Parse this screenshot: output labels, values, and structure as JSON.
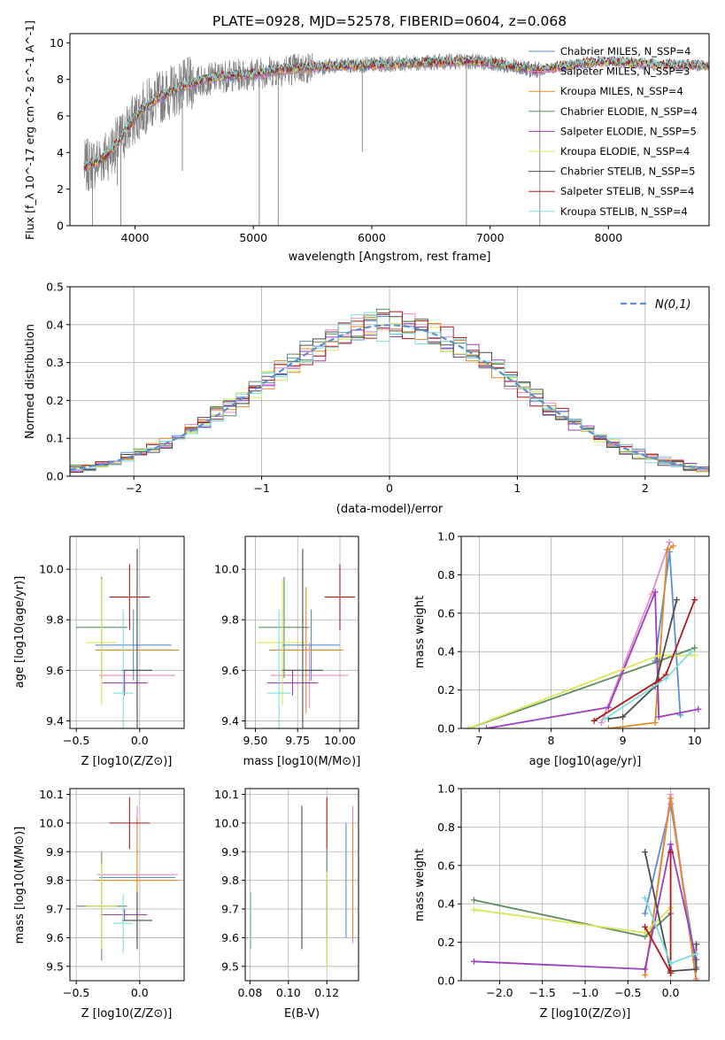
{
  "suptitle": "PLATE=0928, MJD=52578, FIBERID=0604, z=0.068",
  "legend_labels": [
    "Chabrier MILES, N_SSP=4",
    "Salpeter MILES, N_SSP=3",
    "Kroupa MILES, N_SSP=4",
    "Chabrier ELODIE, N_SSP=4",
    "Salpeter ELODIE, N_SSP=5",
    "Kroupa ELODIE, N_SSP=4",
    "Chabrier STELIB, N_SSP=5",
    "Salpeter STELIB, N_SSP=4",
    "Kroupa STELIB, N_SSP=4"
  ],
  "colors": {
    "data": "#808080",
    "models": [
      "#5a8fd0",
      "#e58ac7",
      "#e08a2a",
      "#5f8c5f",
      "#9b3fbf",
      "#d9e85a",
      "#4d4d4d",
      "#b01818",
      "#7fdde0"
    ],
    "dashed": "#5b8fd0"
  },
  "chart_data": [
    {
      "id": "spectrum",
      "type": "line",
      "xlabel": "wavelength [Angstrom, rest frame]",
      "ylabel": "Flux [f_λ 10^-17 erg cm^-2 s^-1 A^-1]",
      "xlim": [
        3450,
        8850
      ],
      "ylim": [
        0,
        10.5
      ],
      "xticks": [
        4000,
        5000,
        6000,
        7000,
        8000
      ],
      "yticks": [
        0,
        2,
        4,
        6,
        8,
        10
      ],
      "continuum": {
        "x": [
          3570,
          3650,
          3750,
          3850,
          3950,
          4050,
          4200,
          4400,
          4600,
          4800,
          5000,
          5200,
          5400,
          5600,
          5800,
          6000,
          6200,
          6400,
          6600,
          6800,
          7000,
          7200,
          7400,
          7600,
          7800,
          8000,
          8200,
          8400,
          8600,
          8800
        ],
        "y": [
          3.2,
          3.4,
          3.8,
          4.5,
          5.4,
          6.3,
          7.0,
          7.6,
          8.0,
          8.2,
          8.3,
          8.5,
          8.6,
          8.7,
          8.75,
          8.8,
          8.85,
          8.9,
          8.95,
          9.0,
          8.9,
          8.7,
          8.5,
          8.7,
          8.9,
          9.0,
          8.9,
          8.8,
          8.8,
          8.75
        ]
      },
      "data_x_range": [
        3570,
        7420
      ],
      "model_x_range": [
        3570,
        8850
      ],
      "spikes": [
        {
          "x": 3640,
          "y": 0
        },
        {
          "x": 3850,
          "y": 2.2
        },
        {
          "x": 3880,
          "y": 0
        },
        {
          "x": 4400,
          "y": 3.0
        },
        {
          "x": 5050,
          "y": 0
        },
        {
          "x": 5210,
          "y": 0
        },
        {
          "x": 5920,
          "y": 4.0
        },
        {
          "x": 6800,
          "y": 0
        },
        {
          "x": 7420,
          "y": 0
        }
      ]
    },
    {
      "id": "residuals",
      "type": "step",
      "xlabel": "(data-model)/error",
      "ylabel": "Normed distribution",
      "xlim": [
        -2.5,
        2.5
      ],
      "ylim": [
        0,
        0.5
      ],
      "xticks": [
        -2,
        -1,
        0,
        1,
        2
      ],
      "yticks": [
        0.0,
        0.1,
        0.2,
        0.3,
        0.4,
        0.5
      ],
      "bin_width": 0.1,
      "legend": "N(0,1)"
    },
    {
      "id": "age-vs-Z",
      "type": "errorbar",
      "xlabel": "Z [log10(Z/Z⊙)]",
      "ylabel": "age  [log10(age/yr)]",
      "xlim": [
        -0.55,
        0.35
      ],
      "ylim": [
        9.37,
        10.13
      ],
      "xticks": [
        -0.5,
        0.0
      ],
      "yticks": [
        9.4,
        9.6,
        9.8,
        10.0
      ],
      "points": [
        {
          "c": 0,
          "x": -0.05,
          "y": 9.7,
          "xe": 0.3,
          "ye": 0.14
        },
        {
          "c": 1,
          "x": -0.02,
          "y": 9.58,
          "xe": 0.3,
          "ye": 0.1
        },
        {
          "c": 2,
          "x": -0.02,
          "y": 9.68,
          "xe": 0.33,
          "ye": 0.25
        },
        {
          "c": 3,
          "x": -0.3,
          "y": 9.77,
          "xe": 0.2,
          "ye": 0.2
        },
        {
          "c": 4,
          "x": -0.12,
          "y": 9.55,
          "xe": 0.18,
          "ye": 0.05
        },
        {
          "c": 5,
          "x": -0.3,
          "y": 9.71,
          "xe": 0.12,
          "ye": 0.25
        },
        {
          "c": 6,
          "x": -0.02,
          "y": 9.6,
          "xe": 0.12,
          "ye": 0.48
        },
        {
          "c": 7,
          "x": -0.08,
          "y": 9.89,
          "xe": 0.16,
          "ye": 0.13
        },
        {
          "c": 8,
          "x": -0.13,
          "y": 9.51,
          "xe": 0.08,
          "ye": 0.33
        }
      ]
    },
    {
      "id": "age-vs-mass",
      "type": "errorbar",
      "xlabel": "mass [log10(M/M⊙)]",
      "ylabel": "",
      "xlim": [
        9.44,
        10.11
      ],
      "ylim": [
        9.37,
        10.13
      ],
      "xticks": [
        9.5,
        9.75,
        10.0
      ],
      "yticks": [
        9.4,
        9.6,
        9.8,
        10.0
      ],
      "points": [
        {
          "c": 0,
          "x": 9.83,
          "y": 9.7,
          "xe": 0.17,
          "ye": 0.14
        },
        {
          "c": 1,
          "x": 9.82,
          "y": 9.58,
          "xe": 0.23,
          "ye": 0.13
        },
        {
          "c": 2,
          "x": 9.8,
          "y": 9.68,
          "xe": 0.22,
          "ye": 0.25
        },
        {
          "c": 3,
          "x": 9.67,
          "y": 9.77,
          "xe": 0.15,
          "ye": 0.2
        },
        {
          "c": 4,
          "x": 9.72,
          "y": 9.55,
          "xe": 0.15,
          "ye": 0.05
        },
        {
          "c": 5,
          "x": 9.66,
          "y": 9.71,
          "xe": 0.15,
          "ye": 0.25
        },
        {
          "c": 6,
          "x": 9.78,
          "y": 9.6,
          "xe": 0.12,
          "ye": 0.48
        },
        {
          "c": 7,
          "x": 10.0,
          "y": 9.89,
          "xe": 0.09,
          "ye": 0.13
        },
        {
          "c": 8,
          "x": 9.64,
          "y": 9.51,
          "xe": 0.07,
          "ye": 0.33
        }
      ]
    },
    {
      "id": "weight-vs-age",
      "type": "line",
      "xlabel": "age  [log10(age/yr)]",
      "ylabel": "mass weight",
      "xlim": [
        6.75,
        10.2
      ],
      "ylim": [
        0,
        1.0
      ],
      "xticks": [
        7,
        8,
        9,
        10
      ],
      "yticks": [
        0.0,
        0.2,
        0.4,
        0.6,
        0.8,
        1.0
      ],
      "series": [
        {
          "c": 0,
          "x": [
            9.45,
            9.65,
            9.8
          ],
          "y": [
            0.35,
            0.92,
            0.07
          ]
        },
        {
          "c": 1,
          "x": [
            8.7,
            9.4,
            9.65
          ],
          "y": [
            0.03,
            0.7,
            0.97
          ]
        },
        {
          "c": 2,
          "x": [
            8.8,
            9.45,
            9.62,
            9.7
          ],
          "y": [
            0.0,
            0.03,
            0.93,
            0.95
          ]
        },
        {
          "c": 3,
          "x": [
            6.85,
            9.5,
            10.0
          ],
          "y": [
            0.0,
            0.35,
            0.42
          ]
        },
        {
          "c": 4,
          "x": [
            7.1,
            8.8,
            9.45,
            9.5,
            10.05
          ],
          "y": [
            0.0,
            0.11,
            0.71,
            0.06,
            0.1
          ]
        },
        {
          "c": 5,
          "x": [
            6.85,
            9.5,
            10.0
          ],
          "y": [
            0.0,
            0.38,
            0.38
          ]
        },
        {
          "c": 6,
          "x": [
            8.8,
            9.0,
            9.45,
            9.75
          ],
          "y": [
            0.05,
            0.06,
            0.22,
            0.67
          ]
        },
        {
          "c": 7,
          "x": [
            8.6,
            9.5,
            9.6,
            10.0
          ],
          "y": [
            0.04,
            0.25,
            0.28,
            0.67
          ]
        },
        {
          "c": 8,
          "x": [
            8.75,
            9.6,
            9.95
          ],
          "y": [
            0.05,
            0.26,
            0.4
          ]
        }
      ]
    },
    {
      "id": "mass-vs-Z",
      "type": "errorbar",
      "xlabel": "Z [log10(Z/Z⊙)]",
      "ylabel": "mass [log10(M/M⊙)]",
      "xlim": [
        -0.55,
        0.35
      ],
      "ylim": [
        9.45,
        10.12
      ],
      "xticks": [
        -0.5,
        0.0
      ],
      "yticks": [
        9.5,
        9.6,
        9.7,
        9.8,
        9.9,
        10.0,
        10.1
      ],
      "points": [
        {
          "c": 0,
          "x": -0.02,
          "y": 9.81,
          "xe": 0.3,
          "ye": 0.02
        },
        {
          "c": 1,
          "x": -0.02,
          "y": 9.82,
          "xe": 0.32,
          "ye": 0.24
        },
        {
          "c": 2,
          "x": -0.02,
          "y": 9.8,
          "xe": 0.33,
          "ye": 0.22
        },
        {
          "c": 3,
          "x": -0.3,
          "y": 9.71,
          "xe": 0.2,
          "ye": 0.19
        },
        {
          "c": 4,
          "x": -0.12,
          "y": 9.68,
          "xe": 0.18,
          "ye": 0.02
        },
        {
          "c": 5,
          "x": -0.3,
          "y": 9.71,
          "xe": 0.12,
          "ye": 0.15
        },
        {
          "c": 6,
          "x": -0.02,
          "y": 9.66,
          "xe": 0.12,
          "ye": 0.1
        },
        {
          "c": 7,
          "x": -0.08,
          "y": 10.0,
          "xe": 0.16,
          "ye": 0.09
        },
        {
          "c": 8,
          "x": -0.13,
          "y": 9.65,
          "xe": 0.08,
          "ye": 0.1
        }
      ]
    },
    {
      "id": "mass-vs-EBV",
      "type": "errorbar",
      "xlabel": "E(B-V)",
      "ylabel": "",
      "xlim": [
        0.0775,
        0.1365
      ],
      "ylim": [
        9.45,
        10.12
      ],
      "xticks": [
        0.08,
        0.1,
        0.12
      ],
      "yticks": [
        9.5,
        9.6,
        9.7,
        9.8,
        9.9,
        10.0,
        10.1
      ],
      "points": [
        {
          "c": 0,
          "x": 0.13,
          "y": 9.8,
          "xe": 0,
          "ye": 0.2
        },
        {
          "c": 1,
          "x": 0.1335,
          "y": 9.82,
          "xe": 0,
          "ye": 0.24
        },
        {
          "c": 2,
          "x": 0.1335,
          "y": 9.8,
          "xe": 0,
          "ye": 0.2
        },
        {
          "c": 3,
          "x": 0.12,
          "y": 9.71,
          "xe": 0,
          "ye": 0.2
        },
        {
          "c": 4,
          "x": 0.12,
          "y": 9.7,
          "xe": 0,
          "ye": 0.1
        },
        {
          "c": 5,
          "x": 0.12,
          "y": 9.66,
          "xe": 0,
          "ye": 0.17
        },
        {
          "c": 6,
          "x": 0.107,
          "y": 9.81,
          "xe": 0,
          "ye": 0.25
        },
        {
          "c": 7,
          "x": 0.12,
          "y": 10.0,
          "xe": 0,
          "ye": 0.09
        },
        {
          "c": 8,
          "x": 0.0805,
          "y": 9.66,
          "xe": 0,
          "ye": 0.1
        }
      ]
    },
    {
      "id": "weight-vs-Z",
      "type": "line",
      "xlabel": "Z [log10(Z/Z⊙)]",
      "ylabel": "mass weight",
      "xlim": [
        -2.45,
        0.45
      ],
      "ylim": [
        0,
        1.0
      ],
      "xticks": [
        -2.0,
        -1.5,
        -1.0,
        -0.5,
        0.0
      ],
      "yticks": [
        0.0,
        0.2,
        0.4,
        0.6,
        0.8,
        1.0
      ],
      "series": [
        {
          "c": 0,
          "x": [
            -0.3,
            0.0,
            0.3
          ],
          "y": [
            0.35,
            0.92,
            0.07
          ]
        },
        {
          "c": 1,
          "x": [
            -0.3,
            0.0,
            0.3
          ],
          "y": [
            0.03,
            0.97,
            0.01
          ]
        },
        {
          "c": 2,
          "x": [
            -0.3,
            0.0,
            0.3
          ],
          "y": [
            0.03,
            0.95,
            0.0
          ]
        },
        {
          "c": 3,
          "x": [
            -2.3,
            -0.3,
            0.0
          ],
          "y": [
            0.42,
            0.23,
            0.35
          ]
        },
        {
          "c": 4,
          "x": [
            -2.3,
            -0.3,
            0.0,
            0.3
          ],
          "y": [
            0.1,
            0.06,
            0.71,
            0.11
          ]
        },
        {
          "c": 5,
          "x": [
            -2.3,
            -0.3,
            0.0
          ],
          "y": [
            0.37,
            0.25,
            0.38
          ]
        },
        {
          "c": 6,
          "x": [
            -0.3,
            0.0,
            0.3,
            0.3
          ],
          "y": [
            0.67,
            0.05,
            0.06,
            0.19
          ]
        },
        {
          "c": 7,
          "x": [
            -0.3,
            0.0,
            0.0
          ],
          "y": [
            0.28,
            0.04,
            0.67
          ]
        },
        {
          "c": 8,
          "x": [
            -0.3,
            0.0,
            0.3
          ],
          "y": [
            0.43,
            0.09,
            0.14
          ]
        }
      ]
    }
  ]
}
